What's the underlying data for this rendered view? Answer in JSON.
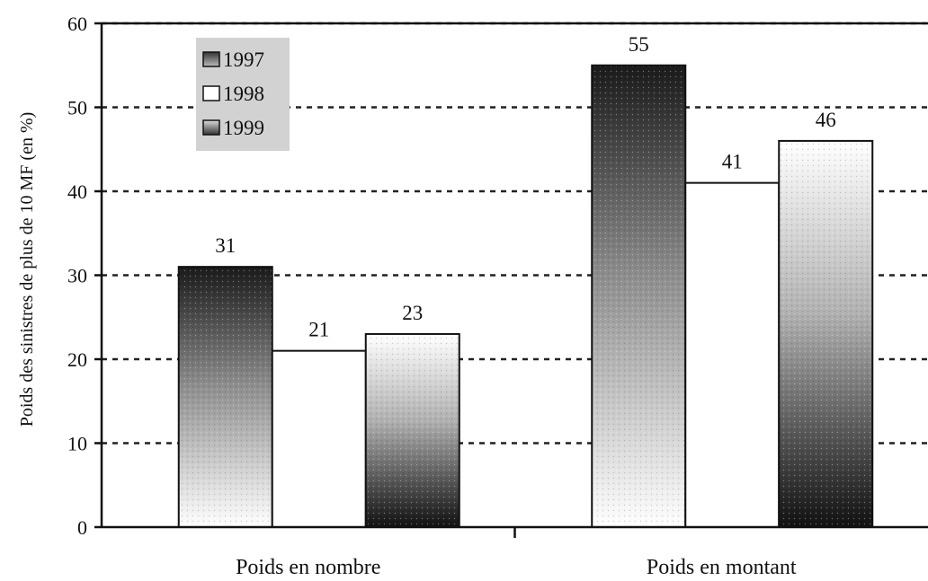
{
  "chart_data": {
    "type": "bar",
    "categories": [
      "Poids en nombre",
      "Poids en montant"
    ],
    "series": [
      {
        "name": "1997",
        "values": [
          31,
          55
        ],
        "color": "#6a6a6a"
      },
      {
        "name": "1998",
        "values": [
          21,
          41
        ],
        "color": "#ffffff"
      },
      {
        "name": "1999",
        "values": [
          23,
          46
        ],
        "color": "#9a9a9a"
      }
    ],
    "title": "",
    "xlabel": "",
    "ylabel": "Poids des sinistres de plus de 10 MF (en %)",
    "ylim": [
      0,
      60
    ],
    "yticks": [
      0,
      10,
      20,
      30,
      40,
      50,
      60
    ],
    "grid": true,
    "legend_position": "top-left",
    "data_labels": true
  }
}
